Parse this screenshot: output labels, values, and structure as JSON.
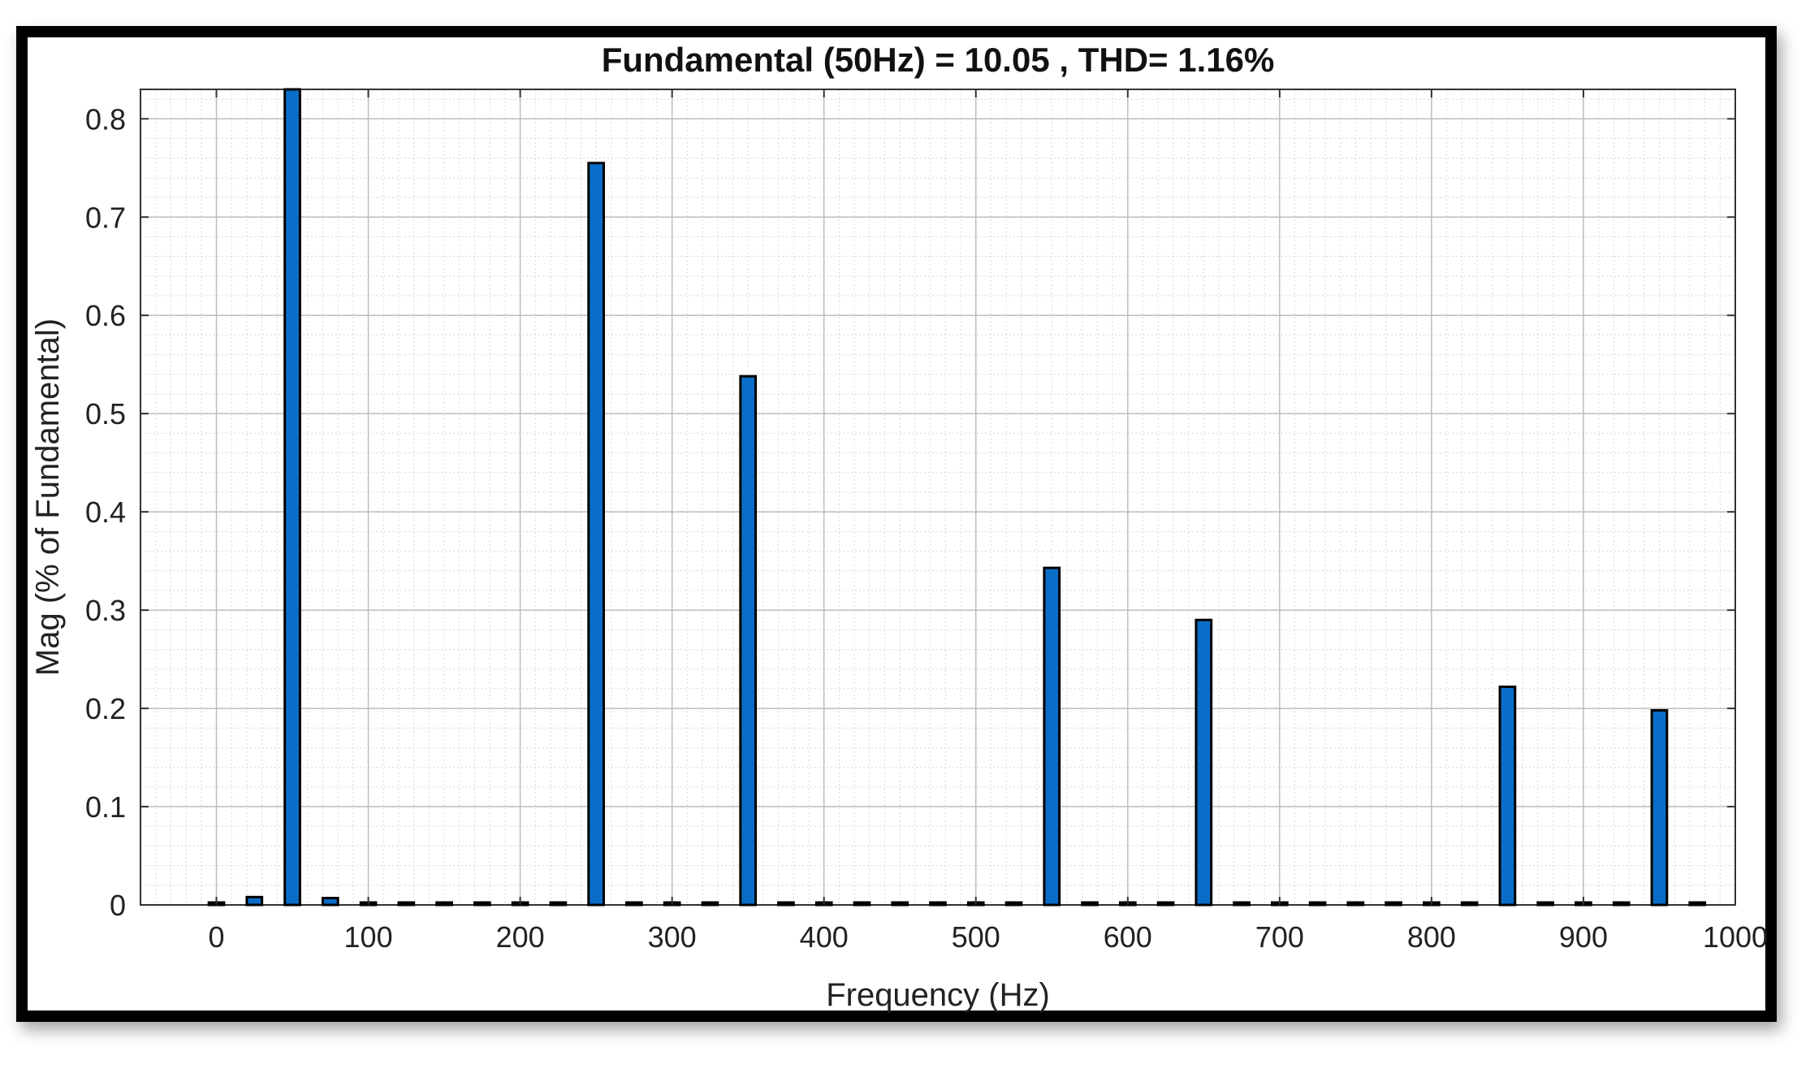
{
  "chart_data": {
    "type": "bar",
    "title": "Fundamental (50Hz) = 10.05 , THD= 1.16%",
    "xlabel": "Frequency (Hz)",
    "ylabel": "Mag (% of Fundamental)",
    "xlim": [
      -50,
      1000
    ],
    "ylim": [
      0,
      0.83
    ],
    "xticks": [
      0,
      100,
      200,
      300,
      400,
      500,
      600,
      700,
      800,
      900,
      1000
    ],
    "xtick_labels": [
      "0",
      "100",
      "200",
      "300",
      "400",
      "500",
      "600",
      "700",
      "800",
      "900",
      "1000"
    ],
    "yticks": [
      0,
      0.1,
      0.2,
      0.3,
      0.4,
      0.5,
      0.6,
      0.7,
      0.8
    ],
    "ytick_labels": [
      "0",
      "0.1",
      "0.2",
      "0.3",
      "0.4",
      "0.5",
      "0.6",
      "0.7",
      "0.8"
    ],
    "grid": true,
    "minor_grid": true,
    "bar_color": "#0a6ec8",
    "bar_edge_color": "#000000",
    "x": [
      0,
      25,
      50,
      75,
      100,
      125,
      150,
      175,
      200,
      225,
      250,
      275,
      300,
      325,
      350,
      375,
      400,
      425,
      450,
      475,
      500,
      525,
      550,
      575,
      600,
      625,
      650,
      675,
      700,
      725,
      750,
      775,
      800,
      825,
      850,
      875,
      900,
      925,
      950,
      975
    ],
    "values": [
      0.002,
      0.008,
      0.83,
      0.007,
      0.002,
      0.001,
      0.001,
      0.001,
      0.001,
      0.001,
      0.755,
      0.002,
      0.002,
      0.001,
      0.538,
      0.001,
      0.001,
      0.001,
      0.001,
      0.001,
      0.001,
      0.001,
      0.343,
      0.001,
      0.001,
      0.001,
      0.29,
      0.001,
      0.001,
      0.001,
      0.001,
      0.001,
      0.001,
      0.001,
      0.222,
      0.001,
      0.001,
      0.001,
      0.198,
      0.001
    ]
  }
}
